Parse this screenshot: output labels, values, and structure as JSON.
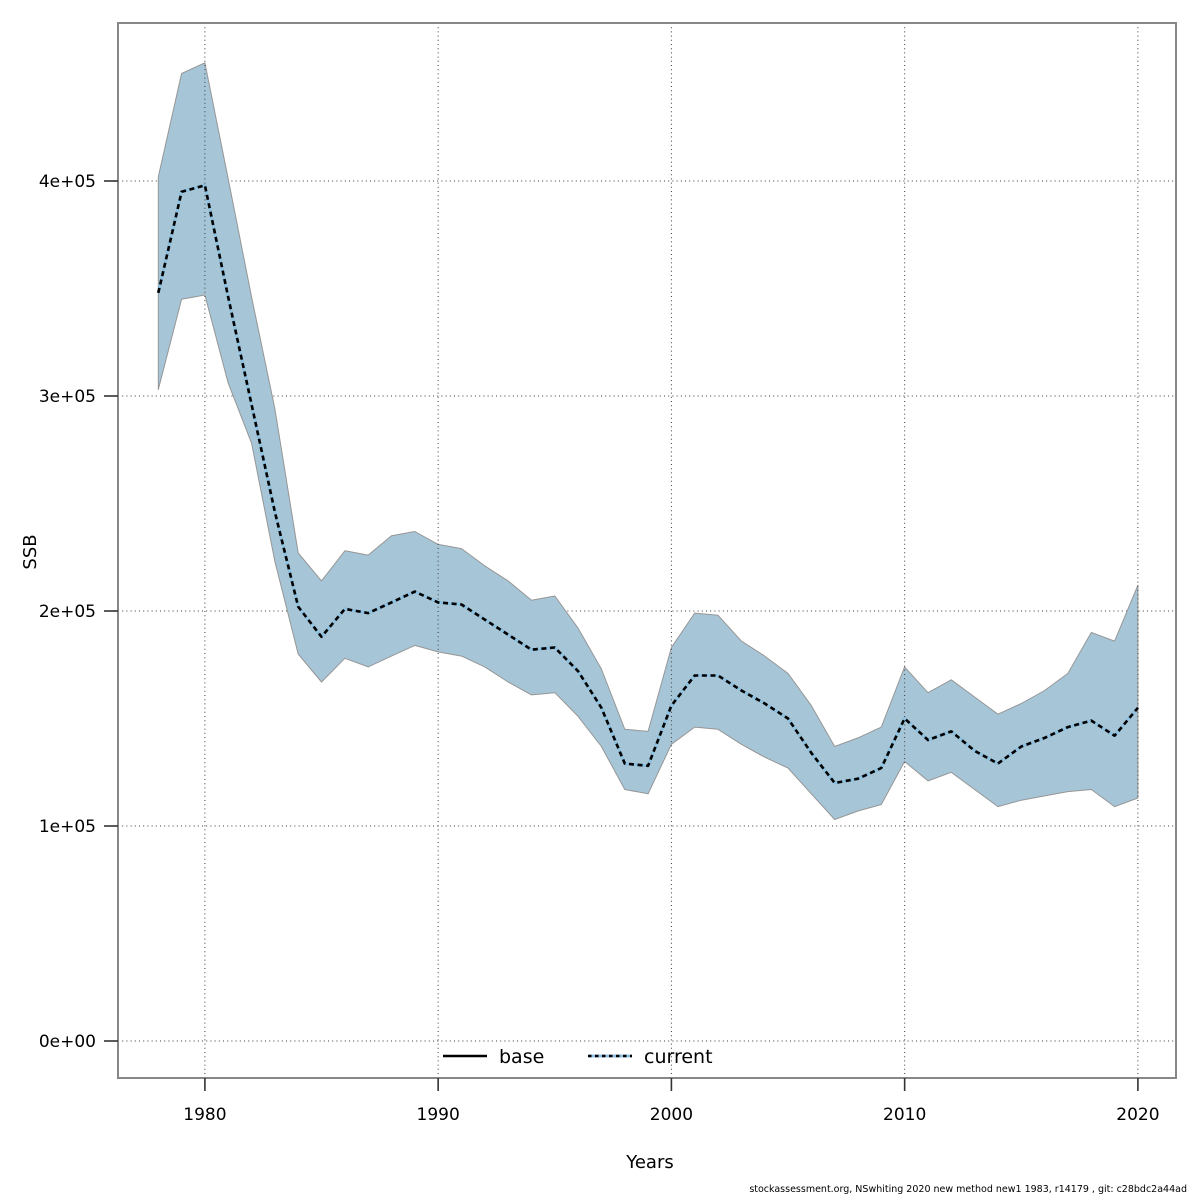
{
  "figure": {
    "legend_base_label": "base",
    "legend_current_label": "current",
    "footer": "stockassessment.org, NSwhiting 2020 new method new1 1983, r14179 , git: c28bdc2a44ad"
  },
  "chart_data": {
    "type": "line",
    "title": "",
    "xlabel": "Years",
    "ylabel": "SSB",
    "grid": true,
    "legend_position": "bottom-center-inside",
    "ylim": [
      0,
      470000
    ],
    "x": [
      1978,
      1979,
      1980,
      1981,
      1982,
      1983,
      1984,
      1985,
      1986,
      1987,
      1988,
      1989,
      1990,
      1991,
      1992,
      1993,
      1994,
      1995,
      1996,
      1997,
      1998,
      1999,
      2000,
      2001,
      2002,
      2003,
      2004,
      2005,
      2006,
      2007,
      2008,
      2009,
      2010,
      2011,
      2012,
      2013,
      2014,
      2015,
      2016,
      2017,
      2018,
      2019,
      2020
    ],
    "xticks": {
      "values": [
        1980,
        1990,
        2000,
        2010,
        2020
      ],
      "labels": [
        "1980",
        "1990",
        "2000",
        "2010",
        "2020"
      ]
    },
    "yticks": {
      "values": [
        0,
        100000,
        200000,
        300000,
        400000
      ],
      "labels": [
        "0e+00",
        "1e+05",
        "2e+05",
        "3e+05",
        "4e+05"
      ]
    },
    "series": [
      {
        "name": "base",
        "style": "solid",
        "color": "#000000",
        "values": [
          348000,
          395000,
          398000,
          346000,
          296000,
          246000,
          202000,
          188000,
          201000,
          199000,
          204000,
          209000,
          204000,
          203000,
          196000,
          189000,
          182000,
          183000,
          172000,
          155000,
          129000,
          128000,
          156000,
          170000,
          170000,
          163000,
          157000,
          150000,
          134000,
          120000,
          122000,
          127000,
          150000,
          140000,
          144000,
          135000,
          129000,
          137000,
          141000,
          146000,
          149000,
          142000,
          155000
        ]
      },
      {
        "name": "current",
        "style": "dotted",
        "color": "#8fc1e0",
        "values": [
          348000,
          395000,
          398000,
          346000,
          296000,
          246000,
          202000,
          188000,
          201000,
          199000,
          204000,
          209000,
          204000,
          203000,
          196000,
          189000,
          182000,
          183000,
          172000,
          155000,
          129000,
          128000,
          156000,
          170000,
          170000,
          163000,
          157000,
          150000,
          134000,
          120000,
          122000,
          127000,
          150000,
          140000,
          144000,
          135000,
          129000,
          137000,
          141000,
          146000,
          149000,
          142000,
          155000
        ]
      }
    ],
    "band": {
      "name": "current-confidence-interval",
      "fill": "#a6c6d8",
      "lower": [
        303000,
        345000,
        347000,
        306000,
        278000,
        223000,
        180000,
        167000,
        178000,
        174000,
        179000,
        184000,
        181000,
        179000,
        174000,
        167000,
        161000,
        162000,
        151000,
        137000,
        117000,
        115000,
        138000,
        146000,
        145000,
        138000,
        132000,
        127000,
        115000,
        103000,
        107000,
        110000,
        130000,
        121000,
        125000,
        117000,
        109000,
        112000,
        114000,
        116000,
        117000,
        109000,
        113000
      ],
      "upper": [
        402000,
        450000,
        455000,
        401000,
        346000,
        294000,
        227000,
        214000,
        228000,
        226000,
        235000,
        237000,
        231000,
        229000,
        221000,
        214000,
        205000,
        207000,
        192000,
        173000,
        145000,
        144000,
        183000,
        199000,
        198000,
        186000,
        179000,
        171000,
        156000,
        137000,
        141000,
        146000,
        174000,
        162000,
        168000,
        160000,
        152000,
        157000,
        163000,
        171000,
        190000,
        186000,
        212000
      ]
    }
  }
}
